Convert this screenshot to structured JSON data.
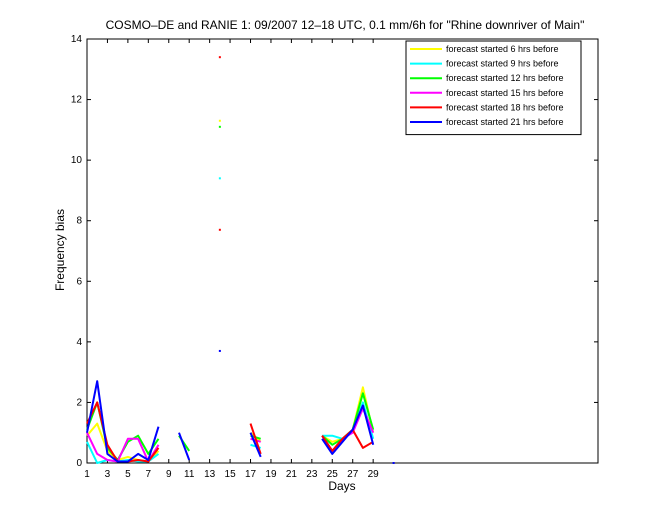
{
  "chart_data": {
    "type": "line",
    "title": "COSMO–DE and RANIE 1: 09/2007 12–18 UTC, 0.1 mm/6h for \"Rhine downriver of Main\"",
    "xlabel": "Days",
    "ylabel": "Frequency bias",
    "xlim": [
      1,
      51
    ],
    "ylim": [
      0,
      14
    ],
    "xticks": [
      1,
      3,
      5,
      7,
      9,
      11,
      13,
      15,
      17,
      19,
      21,
      23,
      25,
      27,
      29
    ],
    "yticks": [
      0,
      2,
      4,
      6,
      8,
      10,
      12,
      14
    ],
    "grid": false,
    "legend_position": "top-right",
    "series": [
      {
        "name": "forecast started 6 hrs before",
        "color": "#ffff00",
        "values": [
          [
            1,
            0.9
          ],
          [
            2,
            1.3
          ],
          [
            3,
            0.4
          ],
          [
            4,
            0.1
          ],
          [
            5,
            0.2
          ],
          [
            6,
            0.1
          ],
          [
            7,
            0.05
          ],
          [
            8,
            0.4
          ],
          [
            10,
            null
          ],
          [
            11,
            null
          ],
          [
            14,
            11.3
          ],
          [
            17,
            1.0
          ],
          [
            18,
            0.7
          ],
          [
            24,
            0.9
          ],
          [
            25,
            0.7
          ],
          [
            26,
            0.8
          ],
          [
            27,
            1.1
          ],
          [
            28,
            2.5
          ],
          [
            29,
            1.0
          ]
        ]
      },
      {
        "name": "forecast started 9 hrs before",
        "color": "#00ffff",
        "values": [
          [
            1,
            0.7
          ],
          [
            2,
            0.0
          ],
          [
            3,
            0.1
          ],
          [
            4,
            0.05
          ],
          [
            5,
            0.1
          ],
          [
            6,
            0.05
          ],
          [
            7,
            0.05
          ],
          [
            8,
            0.3
          ],
          [
            14,
            9.4
          ],
          [
            17,
            0.6
          ],
          [
            18,
            0.5
          ],
          [
            24,
            0.9
          ],
          [
            25,
            0.9
          ],
          [
            26,
            0.8
          ],
          [
            27,
            1.1
          ],
          [
            28,
            2.0
          ],
          [
            29,
            0.8
          ]
        ]
      },
      {
        "name": "forecast started 12 hrs before",
        "color": "#00ff00",
        "values": [
          [
            1,
            1.1
          ],
          [
            2,
            2.0
          ],
          [
            3,
            0.5
          ],
          [
            4,
            0.1
          ],
          [
            5,
            0.7
          ],
          [
            6,
            0.9
          ],
          [
            7,
            0.3
          ],
          [
            8,
            0.8
          ],
          [
            10,
            0.9
          ],
          [
            11,
            0.4
          ],
          [
            14,
            11.1
          ],
          [
            17,
            0.9
          ],
          [
            18,
            0.8
          ],
          [
            24,
            0.9
          ],
          [
            25,
            0.6
          ],
          [
            26,
            0.8
          ],
          [
            27,
            1.1
          ],
          [
            28,
            2.3
          ],
          [
            29,
            1.1
          ]
        ]
      },
      {
        "name": "forecast started 15 hrs before",
        "color": "#ff00ff",
        "values": [
          [
            1,
            1.0
          ],
          [
            2,
            0.3
          ],
          [
            3,
            0.1
          ],
          [
            4,
            0.05
          ],
          [
            5,
            0.8
          ],
          [
            6,
            0.8
          ],
          [
            7,
            0.05
          ],
          [
            8,
            0.6
          ],
          [
            14,
            null
          ],
          [
            17,
            0.8
          ],
          [
            18,
            0.7
          ],
          [
            24,
            0.9
          ],
          [
            25,
            0.4
          ],
          [
            26,
            0.8
          ],
          [
            27,
            1.0
          ],
          [
            28,
            1.8
          ],
          [
            29,
            1.0
          ]
        ]
      },
      {
        "name": "forecast started 18 hrs before",
        "color": "#ff0000",
        "values": [
          [
            1,
            1.3
          ],
          [
            2,
            2.0
          ],
          [
            3,
            0.6
          ],
          [
            4,
            0.05
          ],
          [
            5,
            0.05
          ],
          [
            6,
            0.1
          ],
          [
            7,
            0.05
          ],
          [
            8,
            0.5
          ],
          [
            14,
            7.7
          ],
          [
            17,
            1.3
          ],
          [
            18,
            0.3
          ],
          [
            24,
            0.9
          ],
          [
            25,
            0.4
          ],
          [
            26,
            0.8
          ],
          [
            27,
            1.1
          ],
          [
            28,
            0.5
          ],
          [
            29,
            0.7
          ]
        ]
      },
      {
        "name": "forecast started 21 hrs before",
        "color": "#0000ff",
        "values": [
          [
            1,
            1.0
          ],
          [
            2,
            2.7
          ],
          [
            3,
            0.3
          ],
          [
            4,
            0.05
          ],
          [
            5,
            0.05
          ],
          [
            6,
            0.3
          ],
          [
            7,
            0.1
          ],
          [
            8,
            1.2
          ],
          [
            10,
            1.0
          ],
          [
            11,
            0.1
          ],
          [
            14,
            3.7
          ],
          [
            17,
            1.0
          ],
          [
            18,
            0.2
          ],
          [
            24,
            0.8
          ],
          [
            25,
            0.3
          ],
          [
            26,
            0.7
          ],
          [
            27,
            1.1
          ],
          [
            28,
            1.9
          ],
          [
            29,
            0.6
          ],
          [
            31,
            0.0
          ]
        ]
      }
    ],
    "isolated_points": [
      {
        "x": 14,
        "y": 13.4,
        "color": "#ff0000"
      },
      {
        "x": 14,
        "y": 11.3,
        "color": "#ffff00"
      },
      {
        "x": 14,
        "y": 11.1,
        "color": "#00ff00"
      },
      {
        "x": 14,
        "y": 9.4,
        "color": "#00ffff"
      },
      {
        "x": 14,
        "y": 7.7,
        "color": "#ff0000"
      },
      {
        "x": 14,
        "y": 3.7,
        "color": "#0000ff"
      },
      {
        "x": 31,
        "y": 0.0,
        "color": "#0000ff"
      }
    ]
  }
}
